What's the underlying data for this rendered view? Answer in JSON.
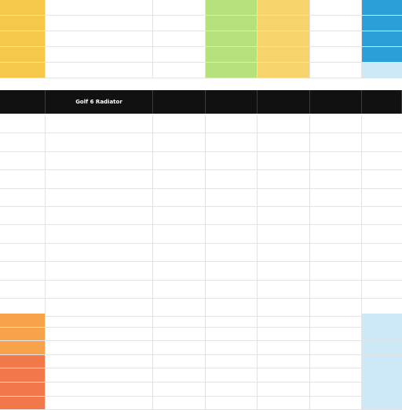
{
  "header": {
    "title": "Golf 6 Radiator"
  },
  "colors": {
    "header_bg": "#111111",
    "yellow": "#f6c84a",
    "green": "#b6e27c",
    "blue": "#2a9fd8",
    "orange": "#f6a34a",
    "red": "#f27a4a"
  }
}
